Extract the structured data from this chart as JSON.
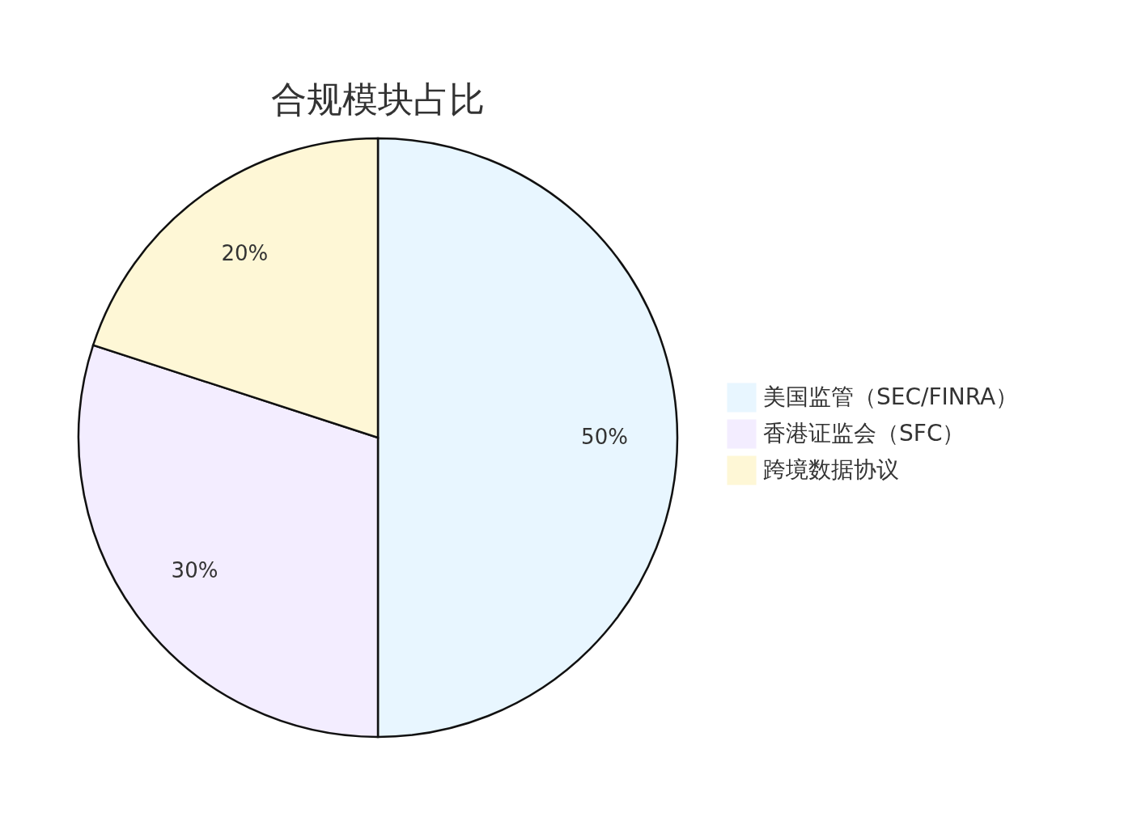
{
  "chart_data": {
    "type": "pie",
    "title": "合规模块占比",
    "categories": [
      "美国监管（SEC/FINRA）",
      "香港证监会（SFC）",
      "跨境数据协议"
    ],
    "values": [
      50,
      30,
      20
    ],
    "colors": [
      "#e8f6ff",
      "#f3edff",
      "#fef7d6"
    ],
    "value_labels": [
      "50%",
      "30%",
      "20%"
    ],
    "legend": "right"
  }
}
